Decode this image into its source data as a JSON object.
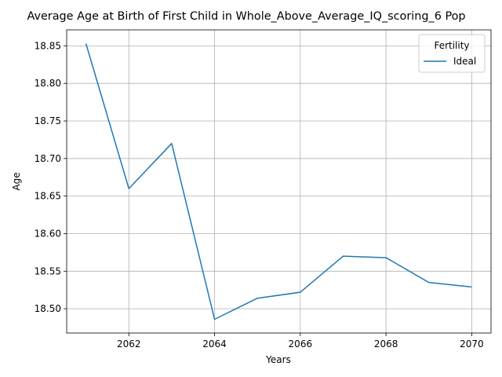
{
  "chart_data": {
    "type": "line",
    "title": "Average Age at Birth of First Child in Whole_Above_Average_IQ_scoring_6 Pop",
    "xlabel": "Years",
    "ylabel": "Age",
    "x": [
      2061,
      2062,
      2063,
      2064,
      2065,
      2066,
      2067,
      2068,
      2069,
      2070
    ],
    "series": [
      {
        "name": "Ideal",
        "color": "#1f77b4",
        "values": [
          18.853,
          18.66,
          18.72,
          18.486,
          18.514,
          18.522,
          18.57,
          18.568,
          18.535,
          18.529
        ]
      }
    ],
    "xlim": [
      2060.55,
      2070.45
    ],
    "ylim": [
      18.4677,
      18.8713
    ],
    "xticks": [
      2062,
      2064,
      2066,
      2068,
      2070
    ],
    "yticks": [
      18.5,
      18.55,
      18.6,
      18.65,
      18.7,
      18.75,
      18.8,
      18.85
    ],
    "grid": true,
    "legend": {
      "title": "Fertility",
      "placement": "top-right"
    }
  }
}
